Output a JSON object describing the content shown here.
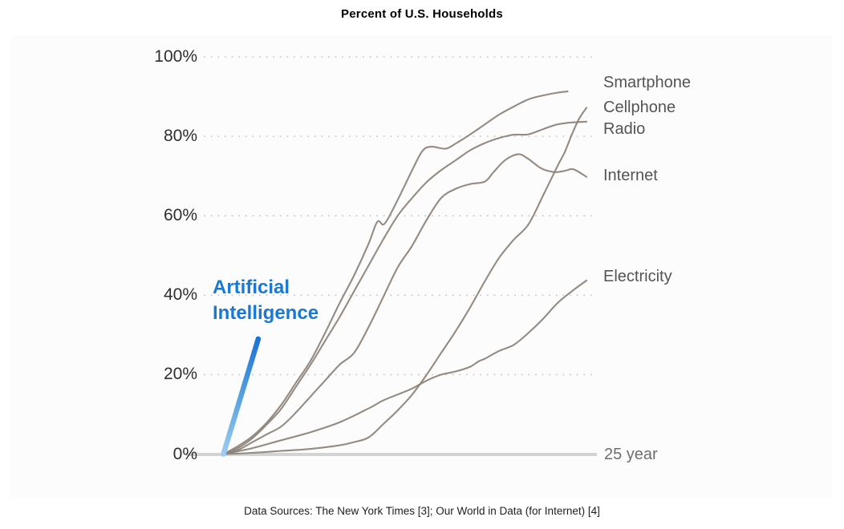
{
  "title": "Percent of U.S. Households",
  "footer": "Data Sources: The New York Times [3]; Our World in Data (for Internet) [4]",
  "ai_label": {
    "lines": [
      "Artificial",
      "Intelligence"
    ]
  },
  "axis": {
    "x_end_label": "25 year",
    "x_span_years": 25,
    "yticks": [
      {
        "label": "100%",
        "value": 100
      },
      {
        "label": "80%",
        "value": 80
      },
      {
        "label": "60%",
        "value": 60
      },
      {
        "label": "40%",
        "value": 40
      },
      {
        "label": "20%",
        "value": 20
      },
      {
        "label": "0%",
        "value": 0
      }
    ]
  },
  "colors": {
    "line_gray": "#8c8278",
    "baseline_gray": "#d3d3d3",
    "grid_dot_gray": "#c9c9c9",
    "ai_blue_label": "#1879d4",
    "ai_gradient_bottom": "#9ccbee",
    "ai_gradient_mid": "#5ea6e1",
    "ai_gradient_top": "#1b74d1",
    "tick_text": "#2f2f2f",
    "series_label_text": "#545454",
    "x_label_text": "#6e6e6e"
  },
  "chart_data": {
    "type": "line",
    "title": "Percent of U.S. Households",
    "xlabel": "years since introduction (axis spans 25 years, labeled '25 year')",
    "ylabel": "Percent of U.S. Households",
    "xlim": [
      0,
      25
    ],
    "ylim": [
      0,
      100
    ],
    "grid": "horizontal dotted gridlines at 20% steps; solid light-gray baseline at 0%",
    "legend_position": "labels at right end of each line",
    "series": [
      {
        "name": "Smartphone",
        "color": "#8c8278",
        "points": [
          [
            0,
            0
          ],
          [
            1,
            2
          ],
          [
            2,
            4.5
          ],
          [
            3,
            8
          ],
          [
            4,
            12.5
          ],
          [
            5,
            18
          ],
          [
            6,
            23.5
          ],
          [
            7,
            30.5
          ],
          [
            8,
            38
          ],
          [
            9,
            45
          ],
          [
            10,
            53
          ],
          [
            10.6,
            58.5
          ],
          [
            11.1,
            58
          ],
          [
            12,
            64
          ],
          [
            13,
            71.5
          ],
          [
            13.7,
            76.3
          ],
          [
            14.3,
            77.4
          ],
          [
            15.3,
            76.9
          ],
          [
            16,
            78.2
          ],
          [
            17,
            80.5
          ],
          [
            18,
            83
          ],
          [
            19,
            85.5
          ],
          [
            20,
            87.5
          ],
          [
            21,
            89.3
          ],
          [
            22,
            90.3
          ],
          [
            23,
            91
          ],
          [
            23.7,
            91.3
          ]
        ]
      },
      {
        "name": "Cellphone",
        "color": "#8c8278",
        "points": [
          [
            0,
            0
          ],
          [
            2,
            0.3
          ],
          [
            4,
            0.8
          ],
          [
            6,
            1.3
          ],
          [
            8,
            2.2
          ],
          [
            9,
            3
          ],
          [
            10,
            4.2
          ],
          [
            11,
            7.5
          ],
          [
            12,
            11
          ],
          [
            13,
            15
          ],
          [
            14,
            20
          ],
          [
            15,
            25.5
          ],
          [
            16,
            31
          ],
          [
            17,
            37
          ],
          [
            18,
            43.5
          ],
          [
            19,
            49.5
          ],
          [
            20,
            54
          ],
          [
            21,
            57.8
          ],
          [
            22,
            65
          ],
          [
            23,
            72.5
          ],
          [
            23.5,
            76
          ],
          [
            24,
            80.5
          ],
          [
            24.5,
            84.5
          ],
          [
            25,
            87.2
          ]
        ]
      },
      {
        "name": "Radio",
        "color": "#8c8278",
        "points": [
          [
            0,
            0
          ],
          [
            1,
            1.5
          ],
          [
            2,
            4
          ],
          [
            3,
            7.5
          ],
          [
            4,
            11.5
          ],
          [
            5,
            17
          ],
          [
            6,
            22.5
          ],
          [
            7,
            28.5
          ],
          [
            8,
            34.5
          ],
          [
            9,
            41
          ],
          [
            10,
            47.5
          ],
          [
            11,
            54
          ],
          [
            12,
            60
          ],
          [
            13,
            64.5
          ],
          [
            14,
            68.5
          ],
          [
            15,
            71.5
          ],
          [
            16,
            74
          ],
          [
            17,
            76.5
          ],
          [
            18,
            78.3
          ],
          [
            19,
            79.6
          ],
          [
            20,
            80.4
          ],
          [
            21,
            80.5
          ],
          [
            22,
            81.8
          ],
          [
            23,
            83
          ],
          [
            24,
            83.5
          ],
          [
            25,
            83.7
          ]
        ]
      },
      {
        "name": "Internet",
        "color": "#8c8278",
        "points": [
          [
            0,
            0
          ],
          [
            1,
            1
          ],
          [
            2,
            3
          ],
          [
            3,
            5
          ],
          [
            4,
            7
          ],
          [
            5,
            10.5
          ],
          [
            6,
            14.5
          ],
          [
            7,
            18.5
          ],
          [
            8,
            22.5
          ],
          [
            9,
            25.5
          ],
          [
            10,
            32
          ],
          [
            11,
            39.5
          ],
          [
            12,
            47
          ],
          [
            13,
            52.5
          ],
          [
            14,
            59
          ],
          [
            15,
            64.5
          ],
          [
            16,
            66.8
          ],
          [
            17,
            68
          ],
          [
            18,
            68.6
          ],
          [
            18.6,
            71
          ],
          [
            19.4,
            74
          ],
          [
            20.3,
            75.5
          ],
          [
            21,
            74.3
          ],
          [
            21.9,
            71.9
          ],
          [
            22.8,
            71
          ],
          [
            23.5,
            71.3
          ],
          [
            24.1,
            71.7
          ],
          [
            25,
            69.8
          ]
        ]
      },
      {
        "name": "Electricity",
        "color": "#8c8278",
        "points": [
          [
            0,
            0
          ],
          [
            2,
            1.5
          ],
          [
            4,
            3.5
          ],
          [
            6,
            5.5
          ],
          [
            8,
            8
          ],
          [
            10,
            11.5
          ],
          [
            11,
            13.5
          ],
          [
            12,
            15
          ],
          [
            13,
            16.5
          ],
          [
            14,
            18.5
          ],
          [
            15,
            20
          ],
          [
            16,
            20.8
          ],
          [
            17,
            22
          ],
          [
            17.6,
            23.4
          ],
          [
            18,
            24
          ],
          [
            19,
            26
          ],
          [
            20,
            27.5
          ],
          [
            21,
            30.5
          ],
          [
            22,
            34
          ],
          [
            23,
            38
          ],
          [
            24,
            41
          ],
          [
            25,
            43.7
          ]
        ]
      },
      {
        "name": "Artificial Intelligence",
        "color": "blue gradient (#9ccbee to #1b74d1)",
        "points": [
          [
            0,
            0
          ],
          [
            2.4,
            29
          ]
        ]
      }
    ]
  }
}
